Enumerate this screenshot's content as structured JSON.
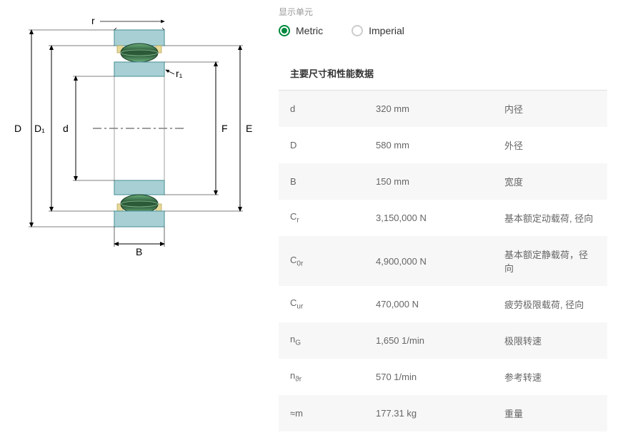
{
  "unit_section": {
    "label": "显示单元",
    "options": {
      "metric": "Metric",
      "imperial": "Imperial"
    },
    "selected": "metric"
  },
  "section_title": "主要尺寸和性能数据",
  "specs": [
    {
      "symbol_html": "d",
      "value": "320 mm",
      "desc": "内径"
    },
    {
      "symbol_html": "D",
      "value": "580 mm",
      "desc": "外径"
    },
    {
      "symbol_html": "B",
      "value": "150 mm",
      "desc": "宽度"
    },
    {
      "symbol_html": "C<sub>r</sub>",
      "value": "3,150,000 N",
      "desc": "基本额定动载荷, 径向"
    },
    {
      "symbol_html": "C<sub>0r</sub>",
      "value": "4,900,000 N",
      "desc": "基本额定静载荷，径向"
    },
    {
      "symbol_html": "C<sub>ur</sub>",
      "value": "470,000 N",
      "desc": "疲劳极限载荷, 径向"
    },
    {
      "symbol_html": "n<sub>G</sub>",
      "value": "1,650 1/min",
      "desc": "极限转速"
    },
    {
      "symbol_html": "n<sub>ϑr</sub>",
      "value": "570 1/min",
      "desc": "参考转速"
    },
    {
      "symbol_html": "≈m",
      "value": "177.31 kg",
      "desc": "重量"
    }
  ],
  "diagram": {
    "labels": {
      "D": "D",
      "D1": "D₁",
      "d": "d",
      "F": "F",
      "E": "E",
      "B": "B",
      "r": "r",
      "r1": "r₁"
    },
    "colors": {
      "outer_ring": "#a8d0d4",
      "outer_ring_stroke": "#5a9aa0",
      "inner_ring": "#a8d0d4",
      "roller": "#3a7a4a",
      "roller_highlight": "#6aad7a",
      "cage": "#e6d898",
      "shaft": "#ffffff",
      "dim_line": "#000000",
      "centerline": "#000000",
      "text": "#000000"
    },
    "font_size_labels": 14
  }
}
